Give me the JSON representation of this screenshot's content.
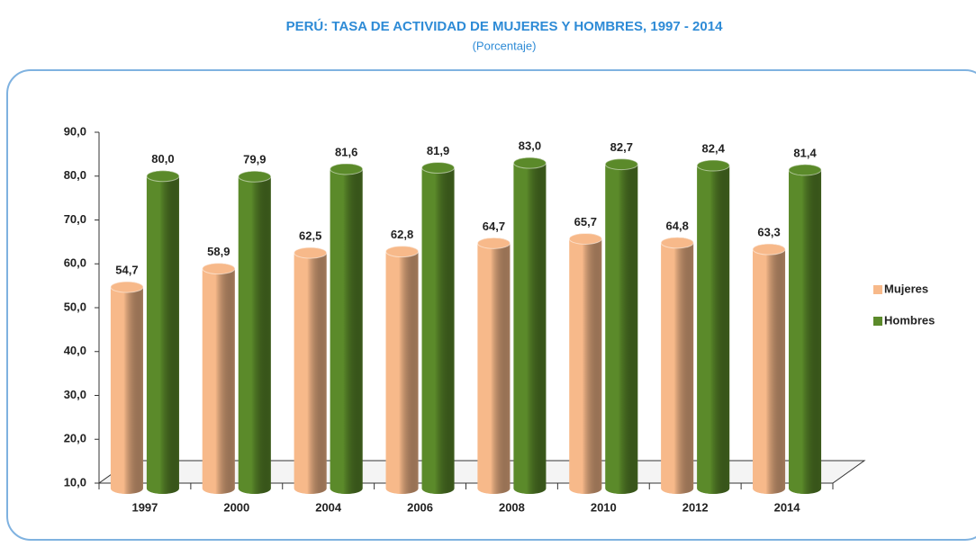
{
  "chart_data": {
    "type": "bar",
    "title": "PERÚ: TASA DE ACTIVIDAD DE MUJERES Y HOMBRES, 1997 - 2014",
    "subtitle": "(Porcentaje)",
    "categories": [
      "1997",
      "2000",
      "2004",
      "2006",
      "2008",
      "2010",
      "2012",
      "2014"
    ],
    "series": [
      {
        "name": "Mujeres",
        "color": "#f7b98a",
        "values": [
          54.7,
          58.9,
          62.5,
          62.8,
          64.7,
          65.7,
          64.8,
          63.3
        ],
        "value_labels": [
          "54,7",
          "58,9",
          "62,5",
          "62,8",
          "64,7",
          "65,7",
          "64,8",
          "63,3"
        ]
      },
      {
        "name": "Hombres",
        "color": "#5b8a2a",
        "values": [
          80.0,
          79.9,
          81.6,
          81.9,
          83.0,
          82.7,
          82.4,
          81.4
        ],
        "value_labels": [
          "80,0",
          "79,9",
          "81,6",
          "81,9",
          "83,0",
          "82,7",
          "82,4",
          "81,4"
        ]
      }
    ],
    "ylim": [
      10,
      90
    ],
    "yticks": [
      {
        "value": 10,
        "label": "10,0"
      },
      {
        "value": 20,
        "label": "20,0"
      },
      {
        "value": 30,
        "label": "30,0"
      },
      {
        "value": 40,
        "label": "40,0"
      },
      {
        "value": 50,
        "label": "50,0"
      },
      {
        "value": 60,
        "label": "60,0"
      },
      {
        "value": 70,
        "label": "70,0"
      },
      {
        "value": 80,
        "label": "80,0"
      },
      {
        "value": 90,
        "label": "90,0"
      }
    ],
    "legend": "right"
  }
}
